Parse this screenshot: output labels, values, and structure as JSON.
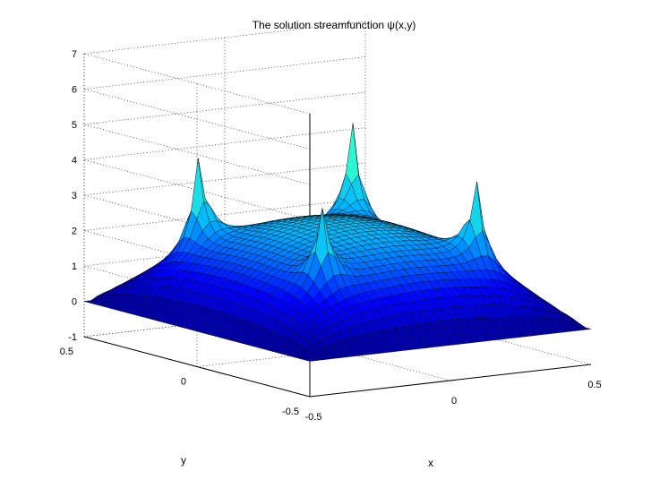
{
  "chart_data": {
    "type": "surface",
    "title": "The solution streamfunction   ψ(x,y)",
    "xlabel": "x",
    "ylabel": "y",
    "zlabel": "",
    "xlim": [
      -0.5,
      0.5
    ],
    "ylim": [
      -0.5,
      0.5
    ],
    "zlim": [
      -1,
      7
    ],
    "x_ticks": [
      "-0.5",
      "0",
      "0.5"
    ],
    "y_ticks": [
      "0.5",
      "0",
      "-0.5"
    ],
    "z_ticks": [
      "-1",
      "0",
      "1",
      "2",
      "3",
      "4",
      "5",
      "6",
      "7"
    ],
    "grid": true,
    "colormap": "blue-cyan-yellow",
    "colors": [
      "#00008f",
      "#0000ff",
      "#00b4ff",
      "#30ffcf",
      "#b0ff50",
      "#ffff00"
    ],
    "peaks": [
      {
        "x": -0.5,
        "y": 0.5,
        "z": 6.0
      },
      {
        "x": 0.5,
        "y": 0.5,
        "z": 6.8
      },
      {
        "x": 0.5,
        "y": -0.5,
        "z": 5.6
      },
      {
        "x": -0.5,
        "y": -0.5,
        "z": 5.2
      }
    ],
    "center_value": 2.6,
    "edge_value": 0
  }
}
